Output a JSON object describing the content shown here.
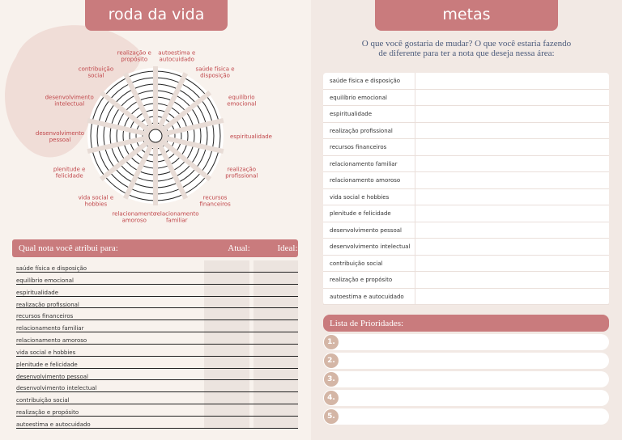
{
  "left": {
    "title": "roda da vida",
    "wheel_labels": [
      [
        "autoestima e",
        "autocuidado"
      ],
      [
        "saúde física e",
        "disposição"
      ],
      [
        "equilíbrio",
        "emocional"
      ],
      [
        "espiritualidade"
      ],
      [
        "realização",
        "profissional"
      ],
      [
        "recursos",
        "financeiros"
      ],
      [
        "relacionamento",
        "familiar"
      ],
      [
        "relacionamento",
        "amoroso"
      ],
      [
        "vida social e",
        "hobbies"
      ],
      [
        "plenitude e",
        "felicidade"
      ],
      [
        "desenvolvimento",
        "pessoal"
      ],
      [
        "desenvolvimento",
        "intelectual"
      ],
      [
        "contribuição",
        "social"
      ],
      [
        "realização e",
        "propósito"
      ]
    ],
    "table": {
      "header": [
        "Qual nota você atribui para:",
        "Atual:",
        "Ideal:"
      ],
      "rows": [
        "saúde física e disposição",
        "equilíbrio emocional",
        "espiritualidade",
        "realização profissional",
        "recursos financeiros",
        "relacionamento familiar",
        "relacionamento amoroso",
        "vida social e hobbies",
        "plenitude e felicidade",
        "desenvolvimento pessoal",
        "desenvolvimento intelectual",
        "contribuição social",
        "realização e propósito",
        "autoestima e autocuidado"
      ]
    }
  },
  "right": {
    "title": "metas",
    "question": [
      "O que você gostaria de mudar? O que você estaria fazendo",
      "de diferente para ter a nota que deseja nessa área:"
    ],
    "rows": [
      "saúde física e disposição",
      "equilíbrio emocional",
      "espiritualidade",
      "realização profissional",
      "recursos financeiros",
      "relacionamento familiar",
      "relacionamento amoroso",
      "vida social e hobbies",
      "plenitude e felicidade",
      "desenvolvimento pessoal",
      "desenvolvimento intelectual",
      "contribuição social",
      "realização e propósito",
      "autoestima e autocuidado"
    ],
    "priorities": {
      "title": "Lista de Prioridades:",
      "items": [
        "1.",
        "2.",
        "3.",
        "4.",
        "5."
      ]
    }
  }
}
